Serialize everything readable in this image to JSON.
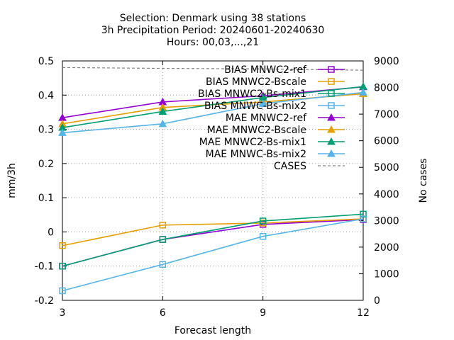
{
  "chart_data": {
    "type": "line",
    "title": [
      "Selection: Denmark using    38 stations",
      "3h Precipitation   Period: 20240601-20240630",
      "Hours: 00,03,...,21"
    ],
    "xlabel": "Forecast length",
    "ylabel": "mm/3h",
    "y2label": "No cases",
    "x": [
      3,
      6,
      9,
      12
    ],
    "xlim": [
      3,
      12
    ],
    "ylim": [
      -0.2,
      0.5
    ],
    "y2lim": [
      0,
      9000
    ],
    "xticks": [
      "3",
      "6",
      "9",
      "12"
    ],
    "yticks": [
      "-0.2",
      "-0.1",
      "0",
      "0.1",
      "0.2",
      "0.3",
      "0.4",
      "0.5"
    ],
    "y2ticks": [
      "0",
      "1000",
      "2000",
      "3000",
      "4000",
      "5000",
      "6000",
      "7000",
      "8000",
      "9000"
    ],
    "grid": true,
    "legend_position": "top-right",
    "series": [
      {
        "name": "BIAS MNWC2-ref",
        "color": "#9400d3",
        "marker": "open-square",
        "axis": "y",
        "values": [
          -0.1,
          -0.022,
          0.022,
          0.036
        ]
      },
      {
        "name": "BIAS MNWC2-Bscale",
        "color": "#e69f00",
        "marker": "open-square",
        "axis": "y",
        "values": [
          -0.04,
          0.02,
          0.026,
          0.038
        ]
      },
      {
        "name": "BIAS MNWC2-Bs-mix1",
        "color": "#009e73",
        "marker": "open-square",
        "axis": "y",
        "values": [
          -0.1,
          -0.022,
          0.032,
          0.052
        ]
      },
      {
        "name": "BIAS MNWC-Bs-mix2",
        "color": "#56b4e9",
        "marker": "open-square",
        "axis": "y",
        "values": [
          -0.172,
          -0.095,
          -0.013,
          0.038
        ]
      },
      {
        "name": "MAE MNWC2-ref",
        "color": "#9400d3",
        "marker": "filled-triangle",
        "axis": "y",
        "values": [
          0.334,
          0.38,
          0.398,
          0.424
        ]
      },
      {
        "name": "MAE MNWC2-Bscale",
        "color": "#e69f00",
        "marker": "filled-triangle",
        "axis": "y",
        "values": [
          0.316,
          0.364,
          0.38,
          0.404
        ]
      },
      {
        "name": "MAE MNWC2-Bs-mix1",
        "color": "#009e73",
        "marker": "filled-triangle",
        "axis": "y",
        "values": [
          0.305,
          0.352,
          0.393,
          0.425
        ]
      },
      {
        "name": "MAE MNWC-Bs-mix2",
        "color": "#56b4e9",
        "marker": "filled-triangle",
        "axis": "y",
        "values": [
          0.29,
          0.316,
          0.375,
          0.408
        ]
      },
      {
        "name": "CASES",
        "color": "#808080",
        "marker": "none",
        "dashed": true,
        "axis": "y2",
        "values": [
          8750,
          8720,
          8700,
          8650
        ]
      }
    ]
  }
}
